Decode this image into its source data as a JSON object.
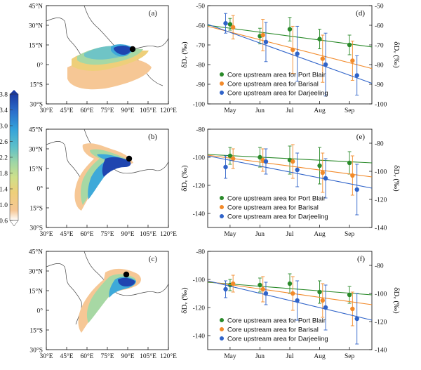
{
  "colors": {
    "port_blair": "#2a8a2a",
    "barisal": "#f28a2a",
    "darjeeling": "#2f63c9",
    "map_shade": [
      "#f6c795",
      "#eecf7a",
      "#d8df8a",
      "#a7d8a4",
      "#6fc4c6",
      "#3ea9d9",
      "#2f7fd1",
      "#1f45b0"
    ]
  },
  "map_axis": {
    "lon_ticks": [
      "30°E",
      "45°E",
      "60°E",
      "75°E",
      "90°E",
      "105°E",
      "120°E"
    ],
    "lat_ticks": [
      "45°N",
      "30°N",
      "15°N",
      "0°",
      "15°S",
      "30°S"
    ]
  },
  "colorbar": {
    "labels": [
      "3.8",
      "3.4",
      "3.0",
      "2.6",
      "2.2",
      "1.8",
      "1.4",
      "1.0",
      "0.6"
    ]
  },
  "maps": [
    {
      "panel_label": "(a)"
    },
    {
      "panel_label": "(b)"
    },
    {
      "panel_label": "(c)"
    }
  ],
  "legend": {
    "port_blair": "Core upstream area for Port Blair",
    "barisal": "Core upstream area for Barisal",
    "darjeeling": "Core upstream area for Darjeeling"
  },
  "chart_data": [
    {
      "type": "scatter",
      "panel_label": "(d)",
      "ylabel": "δDᵥ (‰)",
      "categories": [
        "May",
        "Jun",
        "Jul",
        "Aug",
        "Sep"
      ],
      "ylim": [
        -100,
        -50
      ],
      "yticks": [
        -100,
        -90,
        -80,
        -70,
        -60,
        -50
      ],
      "right_ylim": [
        -100,
        -50
      ],
      "right_yticks": [
        -100,
        -90,
        -80,
        -70,
        -60,
        -50
      ],
      "series": [
        {
          "name": "Port Blair",
          "key": "port_blair",
          "x": [
            1,
            2,
            3,
            4,
            5
          ],
          "values": [
            -59.5,
            -65.5,
            -62,
            -67,
            -70
          ],
          "err": [
            3,
            4,
            6,
            5,
            5
          ],
          "trend": [
            -60,
            -71
          ]
        },
        {
          "name": "Barisal",
          "key": "barisal",
          "x": [
            1.1,
            2.1,
            3.1,
            4.1,
            5.1
          ],
          "values": [
            -61,
            -65,
            -72.5,
            -77,
            -78
          ],
          "err": [
            6,
            8,
            12,
            12,
            10
          ],
          "trend": [
            -60.5,
            -82
          ]
        },
        {
          "name": "Darjeeling",
          "key": "darjeeling",
          "x": [
            0.85,
            2.2,
            3.25,
            4.2,
            5.25
          ],
          "values": [
            -59,
            -68.5,
            -74.5,
            -80,
            -85.5
          ],
          "err": [
            5,
            10,
            14,
            16,
            10
          ],
          "trend": [
            -59.5,
            -89.5
          ]
        }
      ],
      "xticklabels": [
        "May",
        "Jun",
        "Jul",
        "Aug",
        "Sep"
      ]
    },
    {
      "type": "scatter",
      "panel_label": "(e)",
      "ylabel": "δDᵥ (‰)",
      "categories": [
        "May",
        "Jun",
        "Jul",
        "Aug",
        "Sep"
      ],
      "ylim": [
        -150,
        -80
      ],
      "yticks": [
        -140,
        -120,
        -100,
        -80
      ],
      "right_ylim": [
        -140,
        -70
      ],
      "right_yticks": [
        -140,
        -120,
        -100,
        -80
      ],
      "series": [
        {
          "name": "Port Blair",
          "key": "port_blair",
          "x": [
            1,
            2,
            3,
            4,
            5
          ],
          "values": [
            -99,
            -100,
            -102,
            -106,
            -104
          ],
          "err": [
            6,
            7,
            10,
            13,
            8
          ],
          "trend": [
            -98,
            -104
          ]
        },
        {
          "name": "Barisal",
          "key": "barisal",
          "x": [
            1.1,
            2.1,
            3.1,
            4.1,
            5.1
          ],
          "values": [
            -101,
            -102,
            -103,
            -111,
            -113
          ],
          "err": [
            7,
            8,
            12,
            14,
            14
          ],
          "trend": [
            -98.5,
            -114
          ]
        },
        {
          "name": "Darjeeling",
          "key": "darjeeling",
          "x": [
            0.85,
            2.2,
            3.25,
            4.2,
            5.25
          ],
          "values": [
            -107,
            -103,
            -109,
            -115,
            -123
          ],
          "err": [
            8,
            9,
            12,
            14,
            18
          ],
          "trend": [
            -99,
            -122
          ]
        }
      ],
      "xticklabels": [
        "May",
        "Jun",
        "Jul",
        "Aug",
        "Sep"
      ]
    },
    {
      "type": "scatter",
      "panel_label": "(f)",
      "ylabel": "δDᵥ (‰)",
      "categories": [
        "May",
        "Jun",
        "Jul",
        "Aug",
        "Sep"
      ],
      "ylim": [
        -150,
        -80
      ],
      "yticks": [
        -140,
        -120,
        -100,
        -80
      ],
      "right_ylim": [
        -140,
        -70
      ],
      "right_yticks": [
        -140,
        -120,
        -100,
        -80
      ],
      "series": [
        {
          "name": "Port Blair",
          "key": "port_blair",
          "x": [
            1,
            2,
            3,
            4,
            5
          ],
          "values": [
            -104,
            -104,
            -103,
            -109,
            -111
          ],
          "err": [
            4,
            5,
            7,
            8,
            6
          ],
          "trend": [
            -102,
            -111
          ]
        },
        {
          "name": "Barisal",
          "key": "barisal",
          "x": [
            1.1,
            2.1,
            3.1,
            4.1,
            5.1
          ],
          "values": [
            -103,
            -107,
            -110,
            -115,
            -121
          ],
          "err": [
            6,
            9,
            12,
            12,
            12
          ],
          "trend": [
            -101.5,
            -118
          ]
        },
        {
          "name": "Darjeeling",
          "key": "darjeeling",
          "x": [
            0.85,
            2.2,
            3.25,
            4.2,
            5.25
          ],
          "values": [
            -107,
            -110,
            -115,
            -120,
            -128
          ],
          "err": [
            6,
            8,
            14,
            16,
            18
          ],
          "trend": [
            -101,
            -129
          ]
        }
      ],
      "xticklabels": [
        "May",
        "Jun",
        "Jul",
        "Aug",
        "Sep"
      ]
    }
  ]
}
